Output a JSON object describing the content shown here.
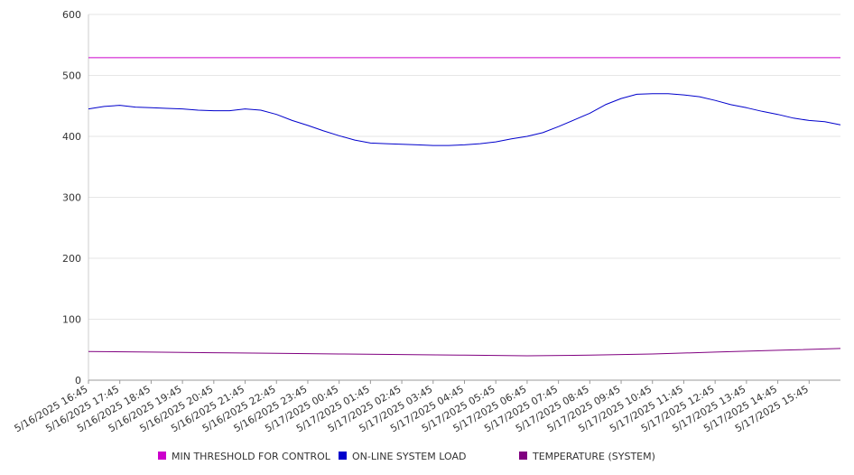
{
  "chart_data": {
    "type": "line",
    "ylim": [
      0,
      600
    ],
    "y_ticks": [
      "0",
      "100",
      "200",
      "300",
      "400",
      "500",
      "600"
    ],
    "x_tick_labels": [
      "5/16/2025 16:45",
      "5/16/2025 17:45",
      "5/16/2025 18:45",
      "5/16/2025 19:45",
      "5/16/2025 20:45",
      "5/16/2025 21:45",
      "5/16/2025 22:45",
      "5/16/2025 23:45",
      "5/17/2025 00:45",
      "5/17/2025 01:45",
      "5/17/2025 02:45",
      "5/17/2025 03:45",
      "5/17/2025 04:45",
      "5/17/2025 05:45",
      "5/17/2025 06:45",
      "5/17/2025 07:45",
      "5/17/2025 08:45",
      "5/17/2025 09:45",
      "5/17/2025 10:45",
      "5/17/2025 11:45",
      "5/17/2025 12:45",
      "5/17/2025 13:45",
      "5/17/2025 14:45",
      "5/17/2025 15:45"
    ],
    "x_start": "5/16/2025 16:45",
    "x_end": "5/17/2025 16:45",
    "grid": true,
    "legend_position": "bottom",
    "series": [
      {
        "name": "MIN THRESHOLD FOR CONTROL",
        "color": "#cc00cc",
        "x": [
          "5/16/2025 16:45",
          "5/17/2025 16:45"
        ],
        "values": [
          529,
          529
        ]
      },
      {
        "name": "ON-LINE SYSTEM LOAD",
        "color": "#0000cc",
        "x": [
          "5/16/2025 16:45",
          "5/16/2025 17:15",
          "5/16/2025 17:45",
          "5/16/2025 18:15",
          "5/16/2025 18:45",
          "5/16/2025 19:15",
          "5/16/2025 19:45",
          "5/16/2025 20:15",
          "5/16/2025 20:45",
          "5/16/2025 21:15",
          "5/16/2025 21:45",
          "5/16/2025 22:15",
          "5/16/2025 22:45",
          "5/16/2025 23:15",
          "5/16/2025 23:45",
          "5/17/2025 00:15",
          "5/17/2025 00:45",
          "5/17/2025 01:15",
          "5/17/2025 01:45",
          "5/17/2025 02:15",
          "5/17/2025 02:45",
          "5/17/2025 03:15",
          "5/17/2025 03:45",
          "5/17/2025 04:15",
          "5/17/2025 04:45",
          "5/17/2025 05:15",
          "5/17/2025 05:45",
          "5/17/2025 06:15",
          "5/17/2025 06:45",
          "5/17/2025 07:15",
          "5/17/2025 07:45",
          "5/17/2025 08:15",
          "5/17/2025 08:45",
          "5/17/2025 09:15",
          "5/17/2025 09:45",
          "5/17/2025 10:15",
          "5/17/2025 10:45",
          "5/17/2025 11:15",
          "5/17/2025 11:45",
          "5/17/2025 12:15",
          "5/17/2025 12:45",
          "5/17/2025 13:15",
          "5/17/2025 13:45",
          "5/17/2025 14:15",
          "5/17/2025 14:45",
          "5/17/2025 15:15",
          "5/17/2025 15:45",
          "5/17/2025 16:15",
          "5/17/2025 16:45"
        ],
        "values": [
          445,
          449,
          451,
          448,
          447,
          446,
          445,
          443,
          442,
          442,
          445,
          443,
          436,
          426,
          418,
          409,
          401,
          394,
          389,
          388,
          387,
          386,
          385,
          385,
          386,
          388,
          391,
          396,
          400,
          406,
          416,
          427,
          438,
          452,
          462,
          469,
          470,
          470,
          468,
          465,
          459,
          452,
          447,
          441,
          436,
          430,
          426,
          424,
          419
        ]
      },
      {
        "name": "TEMPERATURE (SYSTEM)",
        "color": "#800080",
        "x": [
          "5/16/2025 16:45",
          "5/16/2025 18:45",
          "5/16/2025 20:45",
          "5/16/2025 22:45",
          "5/17/2025 00:45",
          "5/17/2025 02:45",
          "5/17/2025 04:45",
          "5/17/2025 06:45",
          "5/17/2025 08:45",
          "5/17/2025 10:45",
          "5/17/2025 12:45",
          "5/17/2025 14:45",
          "5/17/2025 16:45"
        ],
        "values": [
          47,
          46,
          45,
          44,
          43,
          42,
          41,
          40,
          41,
          43,
          46,
          49,
          52
        ]
      }
    ]
  }
}
